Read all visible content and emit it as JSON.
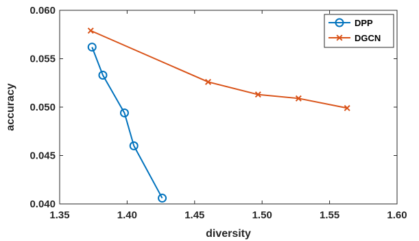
{
  "chart_data": {
    "type": "line",
    "xlabel": "diversity",
    "ylabel": "accuracy",
    "xlim": [
      1.35,
      1.6
    ],
    "ylim": [
      0.04,
      0.06
    ],
    "xticks": [
      "1.35",
      "1.40",
      "1.45",
      "1.50",
      "1.55",
      "1.60"
    ],
    "yticks": [
      "0.040",
      "0.045",
      "0.050",
      "0.055",
      "0.060"
    ],
    "grid": false,
    "legend_position": "top-right",
    "series": [
      {
        "name": "DPP",
        "color": "#0072BD",
        "marker": "circle",
        "x": [
          1.374,
          1.382,
          1.398,
          1.405,
          1.426
        ],
        "y": [
          0.0562,
          0.0533,
          0.0494,
          0.046,
          0.0406
        ]
      },
      {
        "name": "DGCN",
        "color": "#D95319",
        "marker": "x",
        "x": [
          1.373,
          1.46,
          1.497,
          1.527,
          1.563
        ],
        "y": [
          0.0579,
          0.0526,
          0.0513,
          0.0509,
          0.0499
        ]
      }
    ]
  }
}
